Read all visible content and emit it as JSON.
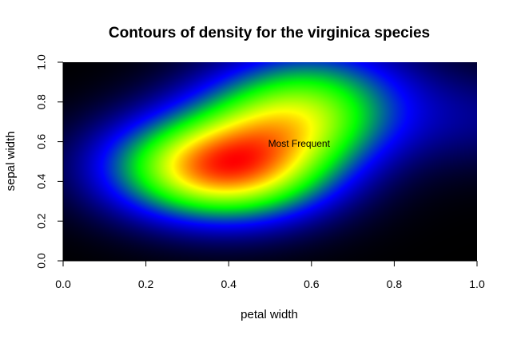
{
  "chart_data": {
    "type": "heatmap",
    "title": "Contours of density for the virginica species",
    "xlabel": "petal width",
    "ylabel": "sepal width",
    "xlim": [
      0,
      1
    ],
    "ylim": [
      0,
      1
    ],
    "x_ticks": [
      "0.0",
      "0.2",
      "0.4",
      "0.6",
      "0.8",
      "1.0"
    ],
    "y_ticks": [
      "0.0",
      "0.2",
      "0.4",
      "0.6",
      "0.8",
      "1.0"
    ],
    "colormap": [
      "#000000",
      "#0000ff",
      "#00ff00",
      "#ffff00",
      "#ff0000"
    ],
    "grid": false,
    "density_peaks": [
      {
        "x": 0.42,
        "y": 0.45,
        "weight": 1.0
      },
      {
        "x": 0.55,
        "y": 0.7,
        "weight": 0.85
      },
      {
        "x": 0.3,
        "y": 0.48,
        "weight": 0.55
      },
      {
        "x": 0.62,
        "y": 0.9,
        "weight": 0.35
      },
      {
        "x": 1.0,
        "y": 0.72,
        "weight": 0.16
      }
    ],
    "annotations": [
      {
        "text": "Most Frequent",
        "x": 0.57,
        "y": 0.59
      }
    ]
  }
}
